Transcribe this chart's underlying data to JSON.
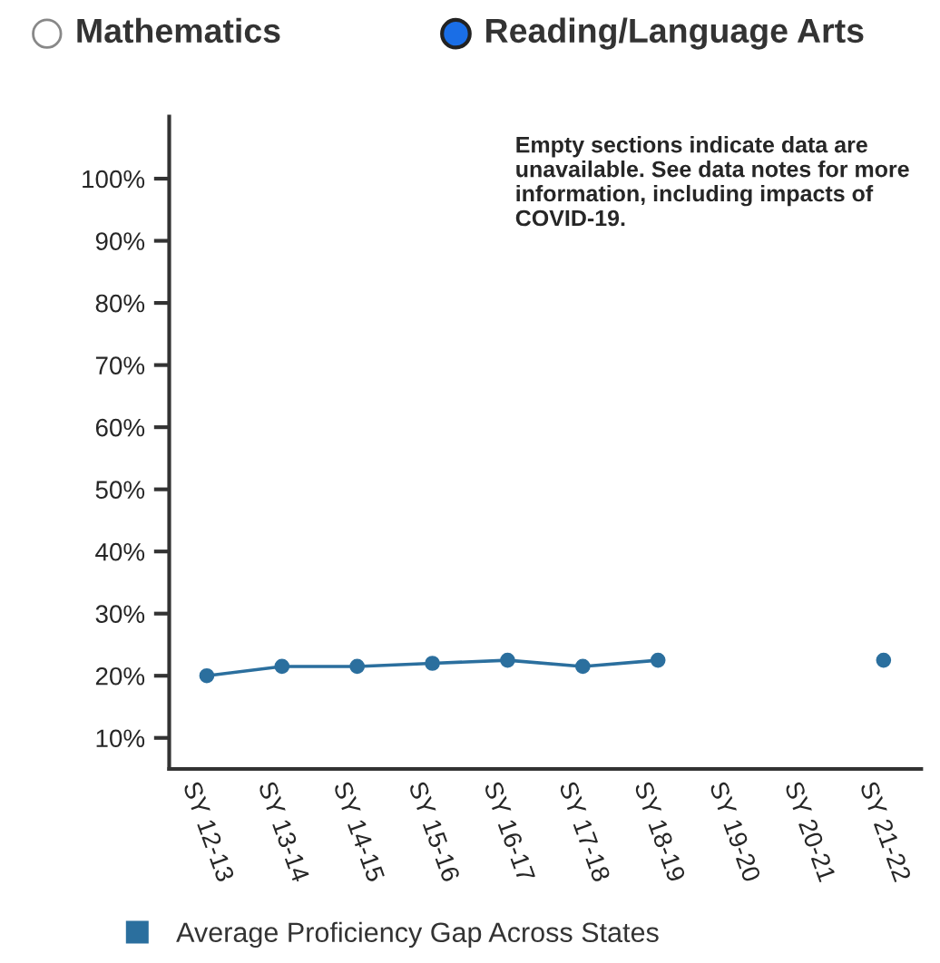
{
  "chart_data": {
    "type": "line",
    "categories": [
      "SY 12-13",
      "SY 13-14",
      "SY 14-15",
      "SY 15-16",
      "SY 16-17",
      "SY 17-18",
      "SY 18-19",
      "SY 19-20",
      "SY 20-21",
      "SY 21-22"
    ],
    "series": [
      {
        "name": "Average Proficiency Gap Across States",
        "color": "#2b6f9e",
        "values": [
          20,
          21.5,
          21.5,
          22,
          22.5,
          21.5,
          22.5,
          null,
          null,
          22.5
        ]
      }
    ],
    "ylim": [
      5,
      110
    ],
    "yticks": [
      {
        "value": 10,
        "label": "10%"
      },
      {
        "value": 20,
        "label": "20%"
      },
      {
        "value": 30,
        "label": "30%"
      },
      {
        "value": 40,
        "label": "40%"
      },
      {
        "value": 50,
        "label": "50%"
      },
      {
        "value": 60,
        "label": "60%"
      },
      {
        "value": 70,
        "label": "70%"
      },
      {
        "value": 80,
        "label": "80%"
      },
      {
        "value": 90,
        "label": "90%"
      },
      {
        "value": 100,
        "label": "100%"
      }
    ],
    "annotations": [
      "Mathematics",
      "Reading/Language Arts",
      "Empty sections indicate data are unavailable. See data notes for more information, including impacts of COVID-19."
    ],
    "marker": "circle",
    "line_style": "solid",
    "grid": false,
    "legend": "bottom left"
  }
}
